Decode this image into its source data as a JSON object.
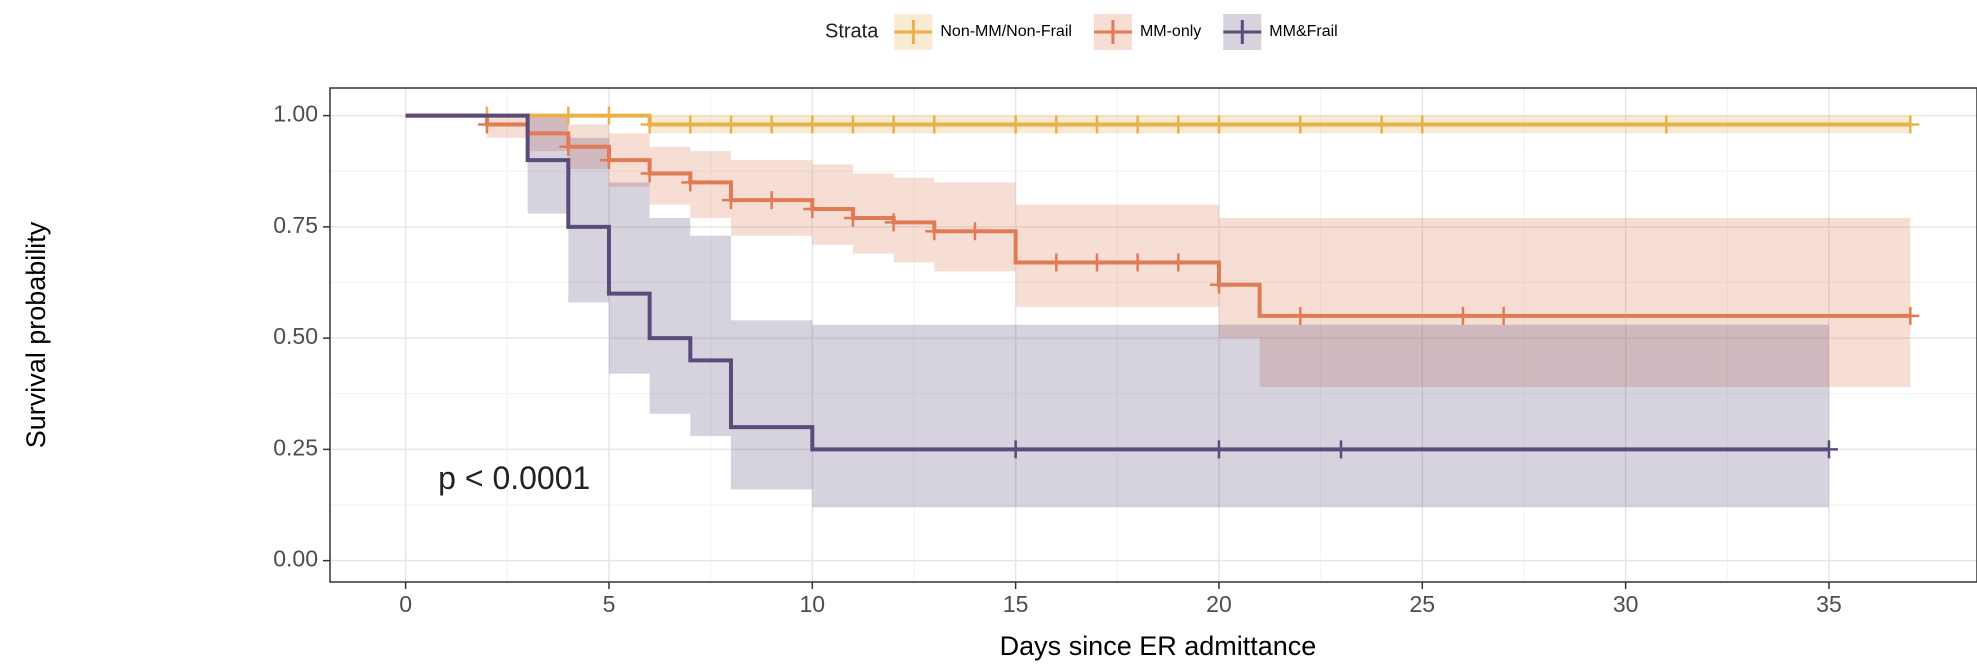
{
  "chart_data": {
    "type": "survival",
    "xlabel": "Days since ER admittance",
    "ylabel": "Survival probability",
    "legend_title": "Strata",
    "annotation": {
      "text": "p < 0.0001",
      "x": 0.8,
      "y": 0.18
    },
    "xlim": [
      -1.86,
      38.64
    ],
    "ylim": [
      -0.048,
      1.062
    ],
    "xticks": [
      0,
      5,
      10,
      15,
      20,
      25,
      30,
      35
    ],
    "yticks": [
      {
        "value": 0,
        "label": "0.00"
      },
      {
        "value": 0.25,
        "label": "0.25"
      },
      {
        "value": 0.5,
        "label": "0.50"
      },
      {
        "value": 0.75,
        "label": "0.75"
      },
      {
        "value": 1,
        "label": "1.00"
      }
    ],
    "grid": true,
    "legend": "top",
    "series": [
      {
        "name": "Non-MM/Non-Frail",
        "color": "#e9b04b",
        "x": [
          0,
          6,
          37
        ],
        "values": [
          1,
          0.98,
          0.98
        ],
        "lower": [
          1,
          0.96,
          0.96
        ],
        "upper": [
          1,
          1,
          1
        ],
        "censor": [
          2,
          4,
          5,
          6,
          7,
          8,
          9,
          10,
          11,
          12,
          13,
          15,
          16,
          17,
          18,
          19,
          20,
          22,
          24,
          25,
          31,
          37
        ]
      },
      {
        "name": "MM-only",
        "color": "#e07b55",
        "x": [
          0,
          2,
          3,
          4,
          5,
          6,
          7,
          8,
          10,
          11,
          12,
          13,
          15,
          20,
          21,
          37
        ],
        "values": [
          1,
          0.98,
          0.96,
          0.93,
          0.9,
          0.87,
          0.85,
          0.81,
          0.79,
          0.77,
          0.76,
          0.74,
          0.67,
          0.62,
          0.55,
          0.55
        ],
        "lower": [
          1,
          0.95,
          0.92,
          0.88,
          0.84,
          0.8,
          0.77,
          0.73,
          0.71,
          0.69,
          0.67,
          0.65,
          0.57,
          0.5,
          0.39,
          0.39
        ],
        "upper": [
          1,
          1,
          1,
          0.98,
          0.96,
          0.93,
          0.92,
          0.9,
          0.89,
          0.87,
          0.86,
          0.85,
          0.8,
          0.77,
          0.77,
          0.77
        ],
        "censor": [
          2,
          4,
          5,
          6,
          7,
          8,
          9,
          10,
          11,
          12,
          13,
          14,
          16,
          17,
          18,
          19,
          20,
          22,
          26,
          27,
          37
        ]
      },
      {
        "name": "MM&Frail",
        "color": "#5b4b7a",
        "x": [
          0,
          3,
          4,
          5,
          6,
          7,
          8,
          10,
          35
        ],
        "values": [
          1,
          0.9,
          0.75,
          0.6,
          0.5,
          0.45,
          0.3,
          0.25,
          0.25
        ],
        "lower": [
          1,
          0.78,
          0.58,
          0.42,
          0.33,
          0.28,
          0.16,
          0.12,
          0.12
        ],
        "upper": [
          1,
          1,
          0.95,
          0.85,
          0.77,
          0.73,
          0.54,
          0.53,
          0.53
        ],
        "censor": [
          15,
          20,
          23,
          35
        ]
      }
    ]
  }
}
